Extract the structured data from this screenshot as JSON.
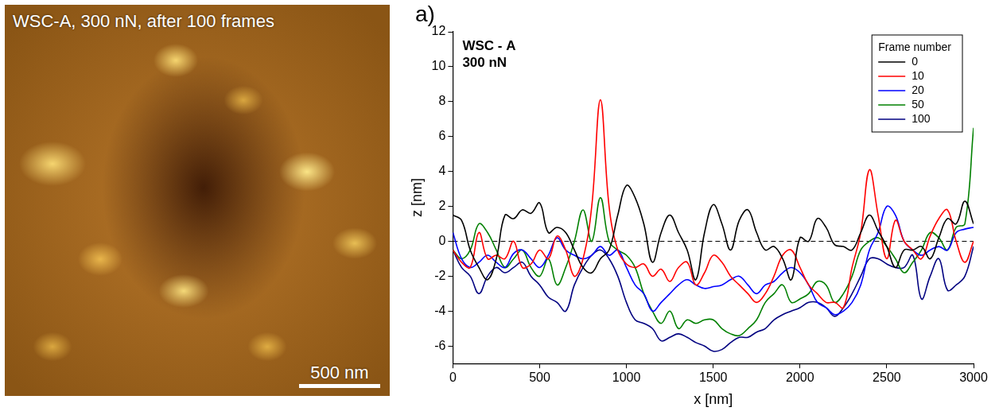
{
  "image_panel": {
    "title": "WSC-A, 300 nN, after 100 frames",
    "scale_bar_label": "500 nm"
  },
  "chart_data": {
    "type": "line",
    "panel_letter": "a)",
    "annotations": [
      "WSC - A",
      "300 nN"
    ],
    "x_label": "x [nm]",
    "y_label": "z [nm]",
    "legend_title": "Frame number",
    "legend": "upper right",
    "grid": false,
    "xlim": [
      0,
      3000
    ],
    "xticks": [
      0,
      500,
      1000,
      1500,
      2000,
      2500,
      3000
    ],
    "ylim": [
      -7,
      12
    ],
    "yticks": [
      -6,
      -4,
      -2,
      0,
      2,
      4,
      6,
      8,
      10,
      12
    ],
    "reference_line": {
      "value": 0,
      "line_style": "dashed"
    },
    "x": [
      0,
      50,
      100,
      150,
      200,
      250,
      300,
      350,
      400,
      450,
      500,
      550,
      600,
      650,
      700,
      750,
      800,
      850,
      900,
      950,
      1000,
      1050,
      1100,
      1150,
      1200,
      1250,
      1300,
      1350,
      1400,
      1450,
      1500,
      1550,
      1600,
      1650,
      1700,
      1750,
      1800,
      1850,
      1900,
      1950,
      2000,
      2050,
      2100,
      2150,
      2200,
      2250,
      2300,
      2350,
      2400,
      2450,
      2500,
      2550,
      2600,
      2650,
      2700,
      2750,
      2800,
      2850,
      2900,
      2950,
      3000
    ],
    "series": [
      {
        "name": "0",
        "color": "#000000",
        "values": [
          1.5,
          1.2,
          -0.5,
          -1.5,
          -2.2,
          -1,
          1.5,
          1.3,
          1.8,
          1.6,
          2.2,
          0.5,
          0.8,
          0.5,
          -0.5,
          -1.5,
          -1.8,
          -1,
          -0.5,
          1.5,
          3.2,
          2.5,
          1,
          -1.2,
          0.5,
          1.5,
          0.5,
          -0.5,
          -2.2,
          0.5,
          2.1,
          1,
          -0.5,
          1.2,
          1.8,
          0.5,
          -0.5,
          -0.3,
          -1,
          -2.2,
          0.2,
          0,
          1.3,
          0.8,
          -0.2,
          -0.3,
          -0.5,
          0.5,
          1.5,
          0.6,
          -0.3,
          -1.5,
          -0.5,
          -0.5,
          -0.3,
          -1,
          0.2,
          1.3,
          1,
          2.3,
          1
        ]
      },
      {
        "name": "10",
        "color": "#ff0000",
        "values": [
          -0.5,
          -1.2,
          -1.5,
          0.5,
          -1,
          -0.8,
          -1,
          0,
          -1.5,
          -1.3,
          -0.5,
          -1,
          0.3,
          -0.5,
          -2,
          -1,
          2,
          8.1,
          2,
          -0.5,
          -1.3,
          -1.5,
          -1.3,
          -2,
          -1.6,
          -2.3,
          -1.5,
          -1.2,
          -2.5,
          -1.8,
          -0.8,
          -1.2,
          -2,
          -2.5,
          -3,
          -3.5,
          -3,
          -2,
          -0.8,
          -0.5,
          -1.5,
          -2.5,
          -3,
          -3.5,
          -3.5,
          -3.8,
          -1.5,
          0.5,
          4.1,
          1.5,
          -1,
          1.2,
          0,
          -0.5,
          -1,
          0.3,
          1.3,
          1.8,
          0,
          -1.2,
          0
        ]
      },
      {
        "name": "20",
        "color": "#0000ff",
        "values": [
          0.5,
          -1,
          -1.5,
          -1.2,
          -0.8,
          -1.2,
          -1.5,
          -0.7,
          -0.5,
          -1,
          -1.5,
          -0.8,
          0.2,
          -0.5,
          -0.8,
          -1,
          -0.8,
          -0.3,
          -0.8,
          -0.5,
          -1.5,
          -2.5,
          -3,
          -4,
          -3.5,
          -3,
          -2.5,
          -2.2,
          -2.5,
          -2.7,
          -2.6,
          -2.5,
          -2.2,
          -2,
          -2.5,
          -3,
          -2.5,
          -2.3,
          -1.8,
          -1.5,
          -1.8,
          -2.5,
          -3.5,
          -3.8,
          -4.2,
          -4,
          -3.5,
          -2.5,
          -0.5,
          0.5,
          2,
          1.5,
          0,
          -0.5,
          -0.8,
          -0.5,
          -0.3,
          -0.5,
          0.5,
          0.7,
          0.8
        ]
      },
      {
        "name": "50",
        "color": "#008000",
        "values": [
          -0.5,
          -1,
          -0.5,
          1,
          0.5,
          -0.5,
          -1.5,
          -1,
          -0.5,
          -1.5,
          -2,
          -1,
          -2.5,
          -1.5,
          0,
          1.8,
          0,
          2.5,
          0,
          -0.5,
          -0.8,
          -1.5,
          -3,
          -4,
          -4.7,
          -4,
          -5,
          -4.5,
          -4.7,
          -4.5,
          -4.5,
          -5,
          -5.3,
          -5.4,
          -5,
          -4.5,
          -3.5,
          -3,
          -2.5,
          -3.5,
          -3.3,
          -3,
          -2.3,
          -2.5,
          -3.5,
          -3,
          -2,
          -0.5,
          0,
          0.2,
          -0.3,
          -1,
          -1.8,
          -1.2,
          -0.5,
          0.5,
          0.2,
          -0.5,
          0.8,
          1,
          6.5
        ]
      },
      {
        "name": "100",
        "color": "#000080",
        "values": [
          -0.5,
          -1.5,
          -2,
          -3,
          -2,
          -1.5,
          -1.8,
          -1.5,
          -1.2,
          -2,
          -2.5,
          -3.2,
          -3.5,
          -4,
          -2.5,
          -1.5,
          -0.8,
          -0.5,
          -1,
          -2,
          -3.5,
          -4.5,
          -4.7,
          -5,
          -5.7,
          -5.5,
          -5.3,
          -5.5,
          -5.8,
          -6,
          -6.3,
          -6.2,
          -5.8,
          -5.5,
          -5.5,
          -5.2,
          -5,
          -4.5,
          -4.2,
          -4,
          -3.8,
          -3.5,
          -3.5,
          -3.8,
          -4.3,
          -3.8,
          -3,
          -2,
          -1,
          -1,
          -1.3,
          -1.5,
          -1.5,
          -0.8,
          -3.3,
          -2,
          -1,
          -2.8,
          -2.5,
          -2,
          -0.3
        ]
      }
    ]
  }
}
